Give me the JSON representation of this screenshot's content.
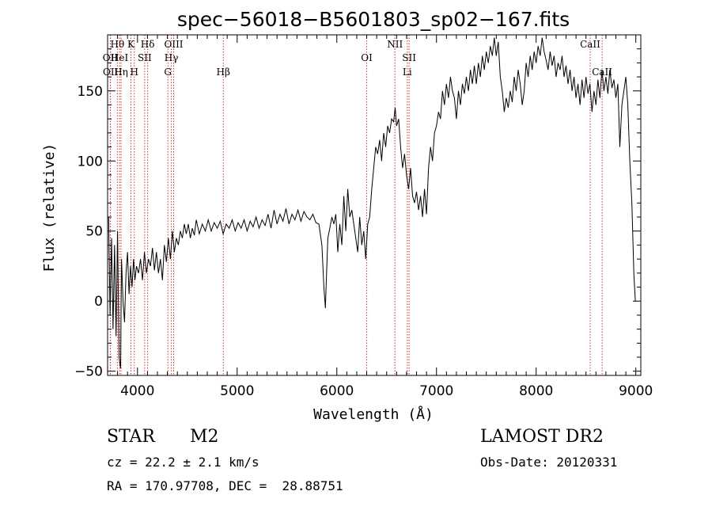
{
  "chart_data": {
    "type": "line",
    "title": "spec−56018−B5601803_sp02−167.fits",
    "xlabel": "Wavelength (Å)",
    "ylabel": "Flux (relative)",
    "xlim": [
      3700,
      9050
    ],
    "ylim": [
      -53,
      190
    ],
    "x_ticks": [
      4000,
      5000,
      6000,
      7000,
      8000,
      9000
    ],
    "y_ticks": [
      -50,
      0,
      50,
      100,
      150
    ],
    "y_tick_labels": [
      "−50",
      "0",
      "50",
      "100",
      "150"
    ],
    "grid": false,
    "series": [
      {
        "color": "#000000",
        "points": [
          [
            3710,
            60
          ],
          [
            3725,
            -10
          ],
          [
            3740,
            45
          ],
          [
            3755,
            -20
          ],
          [
            3770,
            40
          ],
          [
            3785,
            -25
          ],
          [
            3800,
            50
          ],
          [
            3815,
            -40
          ],
          [
            3830,
            -48
          ],
          [
            3840,
            30
          ],
          [
            3855,
            0
          ],
          [
            3870,
            -15
          ],
          [
            3885,
            20
          ],
          [
            3900,
            35
          ],
          [
            3915,
            5
          ],
          [
            3930,
            25
          ],
          [
            3945,
            10
          ],
          [
            3960,
            30
          ],
          [
            3975,
            15
          ],
          [
            3990,
            25
          ],
          [
            4010,
            20
          ],
          [
            4030,
            30
          ],
          [
            4050,
            15
          ],
          [
            4070,
            35
          ],
          [
            4090,
            20
          ],
          [
            4110,
            30
          ],
          [
            4130,
            25
          ],
          [
            4150,
            38
          ],
          [
            4170,
            22
          ],
          [
            4190,
            35
          ],
          [
            4210,
            20
          ],
          [
            4230,
            30
          ],
          [
            4250,
            15
          ],
          [
            4270,
            40
          ],
          [
            4290,
            28
          ],
          [
            4310,
            45
          ],
          [
            4330,
            30
          ],
          [
            4350,
            50
          ],
          [
            4370,
            35
          ],
          [
            4390,
            45
          ],
          [
            4410,
            40
          ],
          [
            4430,
            50
          ],
          [
            4450,
            45
          ],
          [
            4470,
            55
          ],
          [
            4490,
            48
          ],
          [
            4510,
            55
          ],
          [
            4530,
            45
          ],
          [
            4550,
            52
          ],
          [
            4570,
            47
          ],
          [
            4590,
            58
          ],
          [
            4620,
            48
          ],
          [
            4650,
            55
          ],
          [
            4680,
            50
          ],
          [
            4710,
            58
          ],
          [
            4740,
            50
          ],
          [
            4770,
            56
          ],
          [
            4800,
            52
          ],
          [
            4830,
            57
          ],
          [
            4860,
            48
          ],
          [
            4890,
            55
          ],
          [
            4920,
            52
          ],
          [
            4950,
            58
          ],
          [
            4980,
            50
          ],
          [
            5010,
            56
          ],
          [
            5040,
            52
          ],
          [
            5070,
            58
          ],
          [
            5100,
            50
          ],
          [
            5130,
            57
          ],
          [
            5160,
            53
          ],
          [
            5190,
            60
          ],
          [
            5220,
            52
          ],
          [
            5250,
            58
          ],
          [
            5280,
            54
          ],
          [
            5310,
            62
          ],
          [
            5340,
            52
          ],
          [
            5370,
            65
          ],
          [
            5400,
            55
          ],
          [
            5430,
            62
          ],
          [
            5460,
            57
          ],
          [
            5490,
            66
          ],
          [
            5520,
            55
          ],
          [
            5550,
            62
          ],
          [
            5580,
            58
          ],
          [
            5610,
            65
          ],
          [
            5640,
            57
          ],
          [
            5670,
            64
          ],
          [
            5700,
            60
          ],
          [
            5730,
            58
          ],
          [
            5760,
            62
          ],
          [
            5790,
            56
          ],
          [
            5820,
            55
          ],
          [
            5850,
            40
          ],
          [
            5870,
            10
          ],
          [
            5885,
            -5
          ],
          [
            5895,
            15
          ],
          [
            5910,
            45
          ],
          [
            5930,
            52
          ],
          [
            5950,
            60
          ],
          [
            5970,
            55
          ],
          [
            5990,
            62
          ],
          [
            6010,
            35
          ],
          [
            6030,
            55
          ],
          [
            6050,
            40
          ],
          [
            6070,
            75
          ],
          [
            6090,
            50
          ],
          [
            6110,
            80
          ],
          [
            6130,
            60
          ],
          [
            6150,
            65
          ],
          [
            6170,
            55
          ],
          [
            6190,
            45
          ],
          [
            6210,
            35
          ],
          [
            6230,
            60
          ],
          [
            6250,
            40
          ],
          [
            6270,
            50
          ],
          [
            6290,
            30
          ],
          [
            6310,
            55
          ],
          [
            6330,
            60
          ],
          [
            6350,
            80
          ],
          [
            6370,
            95
          ],
          [
            6390,
            110
          ],
          [
            6410,
            105
          ],
          [
            6430,
            115
          ],
          [
            6450,
            100
          ],
          [
            6470,
            120
          ],
          [
            6490,
            110
          ],
          [
            6510,
            125
          ],
          [
            6530,
            120
          ],
          [
            6550,
            130
          ],
          [
            6570,
            128
          ],
          [
            6585,
            138
          ],
          [
            6600,
            125
          ],
          [
            6620,
            130
          ],
          [
            6640,
            110
          ],
          [
            6660,
            95
          ],
          [
            6680,
            105
          ],
          [
            6700,
            90
          ],
          [
            6720,
            80
          ],
          [
            6740,
            95
          ],
          [
            6760,
            75
          ],
          [
            6780,
            70
          ],
          [
            6800,
            78
          ],
          [
            6820,
            65
          ],
          [
            6840,
            75
          ],
          [
            6860,
            60
          ],
          [
            6880,
            80
          ],
          [
            6900,
            62
          ],
          [
            6920,
            95
          ],
          [
            6940,
            110
          ],
          [
            6960,
            100
          ],
          [
            6980,
            120
          ],
          [
            7000,
            125
          ],
          [
            7020,
            135
          ],
          [
            7040,
            130
          ],
          [
            7060,
            150
          ],
          [
            7080,
            140
          ],
          [
            7100,
            155
          ],
          [
            7120,
            145
          ],
          [
            7140,
            160
          ],
          [
            7160,
            150
          ],
          [
            7180,
            145
          ],
          [
            7200,
            130
          ],
          [
            7220,
            150
          ],
          [
            7240,
            140
          ],
          [
            7260,
            155
          ],
          [
            7280,
            148
          ],
          [
            7300,
            160
          ],
          [
            7320,
            150
          ],
          [
            7340,
            165
          ],
          [
            7360,
            155
          ],
          [
            7380,
            168
          ],
          [
            7400,
            155
          ],
          [
            7420,
            170
          ],
          [
            7440,
            160
          ],
          [
            7460,
            175
          ],
          [
            7480,
            165
          ],
          [
            7500,
            178
          ],
          [
            7520,
            170
          ],
          [
            7540,
            182
          ],
          [
            7560,
            175
          ],
          [
            7580,
            188
          ],
          [
            7600,
            175
          ],
          [
            7620,
            185
          ],
          [
            7640,
            160
          ],
          [
            7660,
            150
          ],
          [
            7680,
            135
          ],
          [
            7700,
            145
          ],
          [
            7720,
            138
          ],
          [
            7740,
            150
          ],
          [
            7760,
            142
          ],
          [
            7780,
            160
          ],
          [
            7800,
            150
          ],
          [
            7820,
            165
          ],
          [
            7840,
            155
          ],
          [
            7860,
            140
          ],
          [
            7880,
            150
          ],
          [
            7900,
            170
          ],
          [
            7920,
            160
          ],
          [
            7940,
            175
          ],
          [
            7960,
            165
          ],
          [
            7980,
            178
          ],
          [
            8000,
            170
          ],
          [
            8020,
            182
          ],
          [
            8040,
            175
          ],
          [
            8060,
            188
          ],
          [
            8080,
            178
          ],
          [
            8100,
            172
          ],
          [
            8120,
            165
          ],
          [
            8140,
            178
          ],
          [
            8160,
            168
          ],
          [
            8180,
            175
          ],
          [
            8200,
            160
          ],
          [
            8220,
            170
          ],
          [
            8240,
            165
          ],
          [
            8260,
            175
          ],
          [
            8280,
            160
          ],
          [
            8300,
            168
          ],
          [
            8320,
            155
          ],
          [
            8340,
            165
          ],
          [
            8360,
            150
          ],
          [
            8380,
            160
          ],
          [
            8400,
            145
          ],
          [
            8420,
            155
          ],
          [
            8440,
            140
          ],
          [
            8460,
            158
          ],
          [
            8480,
            145
          ],
          [
            8500,
            160
          ],
          [
            8520,
            148
          ],
          [
            8540,
            155
          ],
          [
            8560,
            135
          ],
          [
            8580,
            150
          ],
          [
            8600,
            140
          ],
          [
            8620,
            158
          ],
          [
            8640,
            145
          ],
          [
            8660,
            165
          ],
          [
            8680,
            150
          ],
          [
            8700,
            160
          ],
          [
            8720,
            148
          ],
          [
            8740,
            165
          ],
          [
            8760,
            152
          ],
          [
            8780,
            158
          ],
          [
            8800,
            145
          ],
          [
            8820,
            155
          ],
          [
            8840,
            110
          ],
          [
            8860,
            140
          ],
          [
            8880,
            150
          ],
          [
            8900,
            160
          ],
          [
            8920,
            140
          ],
          [
            8940,
            100
          ],
          [
            8960,
            70
          ],
          [
            8980,
            20
          ],
          [
            8995,
            0
          ]
        ]
      }
    ],
    "lines": [
      {
        "label": "Hθ",
        "wavelength": 3798,
        "row": 0
      },
      {
        "label": "OII",
        "wavelength": 3727,
        "row": 1
      },
      {
        "label": "OII",
        "wavelength": 3729,
        "row": 2
      },
      {
        "label": "HeI",
        "wavelength": 3820,
        "row": 1
      },
      {
        "label": "Hη",
        "wavelength": 3835,
        "row": 2
      },
      {
        "label": "K",
        "wavelength": 3934,
        "row": 0
      },
      {
        "label": "H",
        "wavelength": 3968,
        "row": 2
      },
      {
        "label": "SII",
        "wavelength": 4072,
        "row": 1
      },
      {
        "label": "Hδ",
        "wavelength": 4102,
        "row": 0
      },
      {
        "label": "OIII",
        "wavelength": 4363,
        "row": 0
      },
      {
        "label": "Hγ",
        "wavelength": 4340,
        "row": 1
      },
      {
        "label": "G",
        "wavelength": 4305,
        "row": 2
      },
      {
        "label": "Hβ",
        "wavelength": 4861,
        "row": 2
      },
      {
        "label": "OI",
        "wavelength": 6300,
        "row": 1
      },
      {
        "label": "NII",
        "wavelength": 6583,
        "row": 0
      },
      {
        "label": "Li",
        "wavelength": 6707,
        "row": 2
      },
      {
        "label": "SII",
        "wavelength": 6725,
        "row": 1
      },
      {
        "label": "CaII",
        "wavelength": 8542,
        "row": 0
      },
      {
        "label": "CaII",
        "wavelength": 8662,
        "row": 2
      }
    ]
  },
  "info": {
    "class": "STAR",
    "subclass": "M2",
    "survey": "LAMOST DR2",
    "cz": "cz = 22.2 ± 2.1 km/s",
    "obs_date": "Obs-Date: 20120331",
    "coords": "RA = 170.97708, DEC =  28.88751"
  },
  "colors": {
    "line_marker": "#cc3333",
    "spectrum": "#000000"
  }
}
